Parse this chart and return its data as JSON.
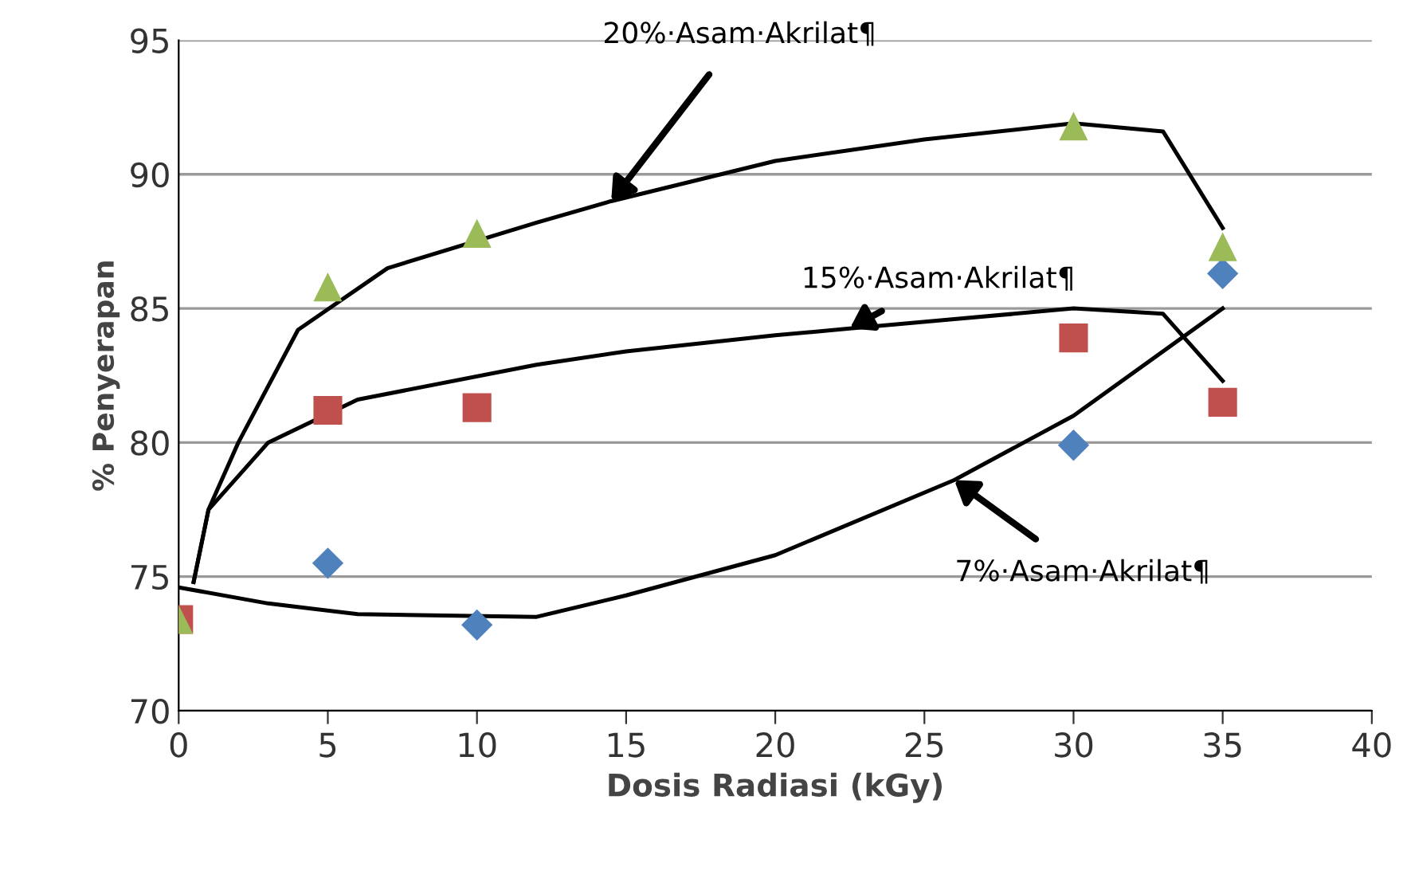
{
  "chart_data": {
    "type": "scatter",
    "xlabel": "Dosis Radiasi (kGy)",
    "ylabel": "% Penyerapan",
    "xlim": [
      0,
      40
    ],
    "xticks": [
      0,
      5,
      10,
      15,
      20,
      25,
      30,
      35,
      40
    ],
    "ylim": [
      70,
      95
    ],
    "yticks": [
      70,
      75,
      80,
      85,
      90,
      95
    ],
    "grid": "y",
    "series": [
      {
        "type": "line",
        "color": "#000000",
        "x": [
          0,
          3,
          6,
          12,
          15,
          20,
          26,
          30,
          35
        ],
        "values": [
          74.6,
          74.0,
          73.6,
          73.5,
          74.3,
          75.8,
          78.6,
          81.0,
          85.0
        ]
      },
      {
        "type": "line",
        "color": "#000000",
        "x": [
          0.5,
          1,
          3,
          6,
          12,
          15,
          20,
          22.5,
          26,
          30,
          33,
          35
        ],
        "values": [
          74.8,
          77.5,
          80.0,
          81.6,
          82.9,
          83.4,
          84.0,
          84.25,
          84.6,
          85.0,
          84.8,
          82.3
        ]
      },
      {
        "type": "line",
        "color": "#000000",
        "x": [
          0.5,
          1,
          2,
          4,
          7,
          12,
          14.5,
          20,
          25,
          30,
          33,
          35
        ],
        "values": [
          74.8,
          77.5,
          80.0,
          84.2,
          86.5,
          88.2,
          89.0,
          90.5,
          91.3,
          91.9,
          91.6,
          88.0
        ]
      },
      {
        "marker": "diamond",
        "color": "#4f81bd",
        "x": [
          5,
          10,
          30,
          35
        ],
        "values": [
          75.5,
          73.2,
          79.9,
          86.3
        ]
      },
      {
        "marker": "square",
        "color": "#c0504d",
        "x": [
          0,
          5,
          10,
          30,
          35
        ],
        "values": [
          73.4,
          81.2,
          81.3,
          83.9,
          81.5
        ]
      },
      {
        "marker": "triangle",
        "color": "#9bbb59",
        "x": [
          0,
          5,
          10,
          30,
          35
        ],
        "values": [
          73.4,
          85.8,
          87.8,
          91.8,
          87.3
        ]
      }
    ],
    "annotations": [
      {
        "text": "20%·Asam·Akrilat¶",
        "x": 14.5,
        "y": 89.0
      },
      {
        "text": "15%·Asam·Akrilat¶",
        "x": 22.5,
        "y": 84.25
      },
      {
        "text": "7%·Asam·Akrilat¶",
        "x": 26,
        "y": 78.6
      }
    ]
  }
}
